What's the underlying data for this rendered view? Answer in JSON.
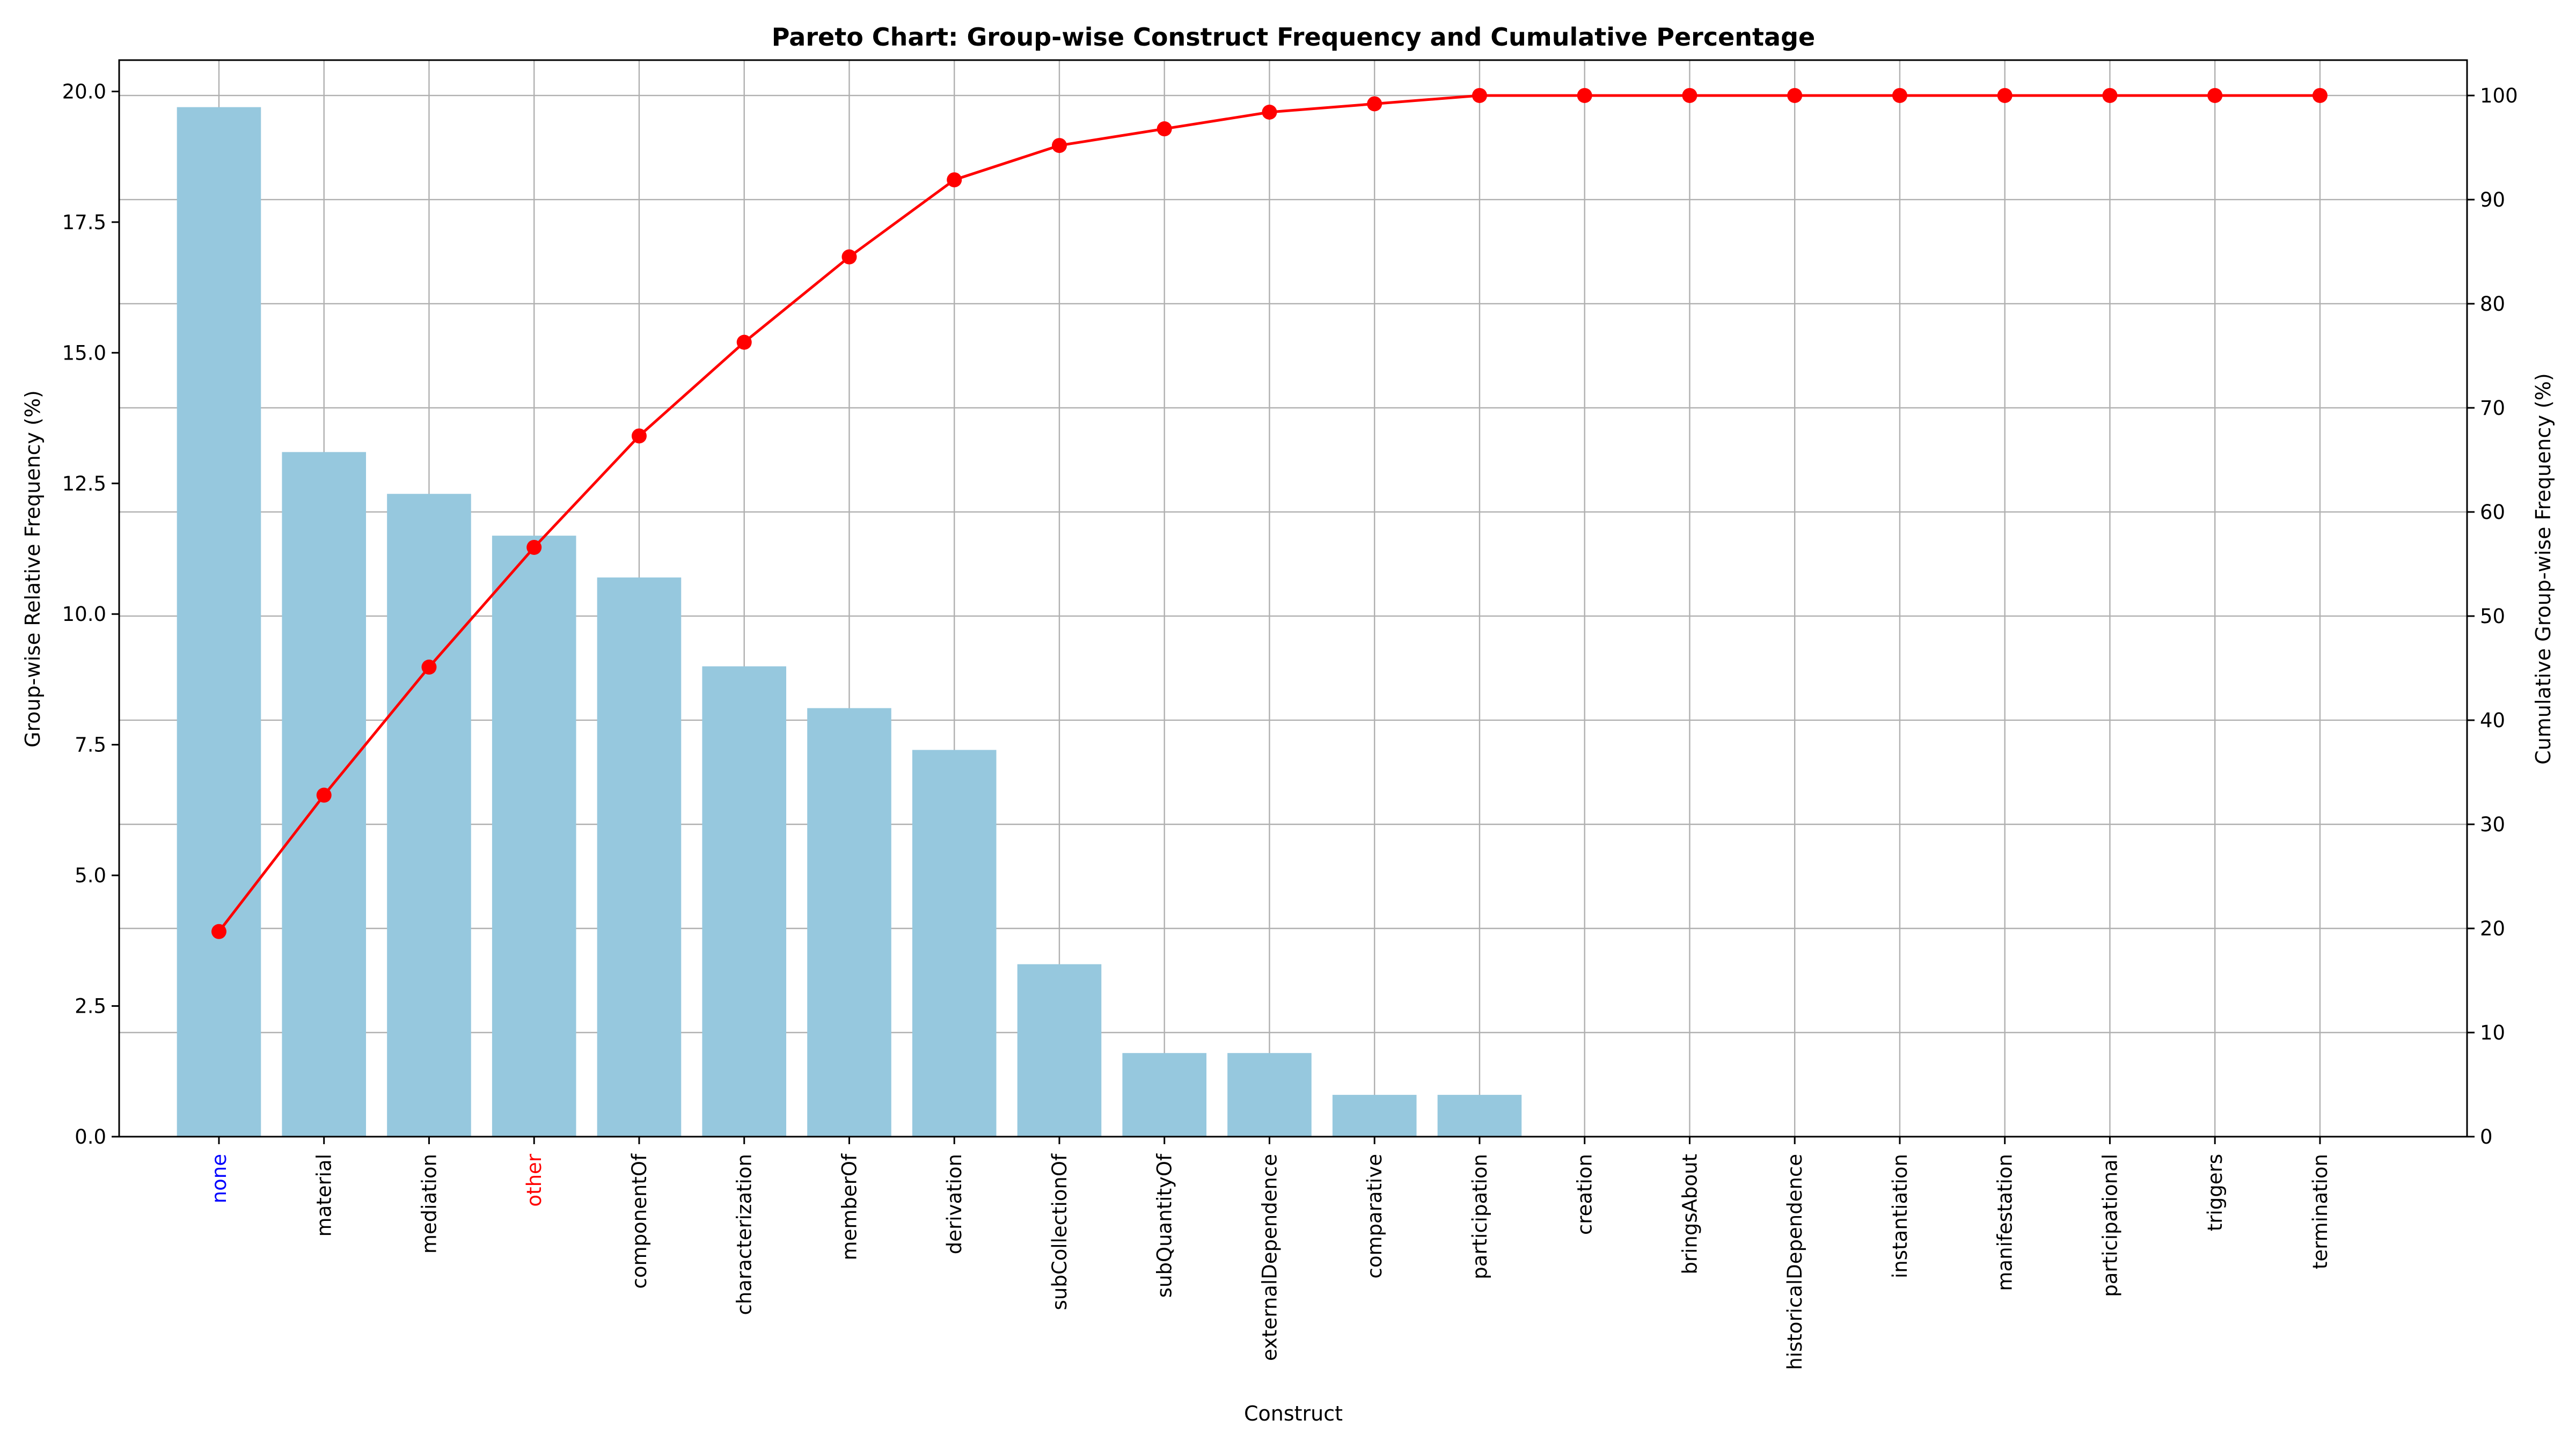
{
  "chart_data": {
    "type": "bar",
    "title": "Pareto Chart: Group-wise Construct Frequency and Cumulative Percentage",
    "xlabel": "Construct",
    "ylabel": "Group-wise Relative Frequency (%)",
    "y2label": "Cumulative Group-wise Frequency (%)",
    "ylim": [
      0,
      20.6
    ],
    "y2lim": [
      0,
      103.4
    ],
    "yticks": [
      "0.0",
      "2.5",
      "5.0",
      "7.5",
      "10.0",
      "12.5",
      "15.0",
      "17.5",
      "20.0"
    ],
    "y2ticks": [
      "0",
      "10",
      "20",
      "30",
      "40",
      "50",
      "60",
      "70",
      "80",
      "90",
      "100"
    ],
    "grid": true,
    "categories": [
      "none",
      "material",
      "mediation",
      "other",
      "componentOf",
      "characterization",
      "memberOf",
      "derivation",
      "subCollectionOf",
      "subQuantityOf",
      "externalDependence",
      "comparative",
      "participation",
      "creation",
      "bringsAbout",
      "historicalDependence",
      "instantiation",
      "manifestation",
      "participational",
      "triggers",
      "termination"
    ],
    "category_colors": {
      "none": "#0000ff",
      "other": "#ff0000"
    },
    "series": [
      {
        "name": "Group-wise Relative Frequency (%)",
        "kind": "bar",
        "color": "#96c8de",
        "values": [
          19.7,
          13.1,
          12.3,
          11.5,
          10.7,
          9.0,
          8.2,
          7.4,
          3.3,
          1.6,
          1.6,
          0.8,
          0.8,
          0,
          0,
          0,
          0,
          0,
          0,
          0,
          0
        ]
      },
      {
        "name": "Cumulative Group-wise Frequency (%)",
        "kind": "line",
        "color": "#ff0000",
        "axis": "right",
        "values": [
          19.7,
          32.8,
          45.1,
          56.6,
          67.3,
          76.3,
          84.5,
          91.9,
          95.2,
          96.8,
          98.4,
          99.2,
          100.0,
          100.0,
          100.0,
          100.0,
          100.0,
          100.0,
          100.0,
          100.0,
          100.0
        ]
      }
    ]
  }
}
